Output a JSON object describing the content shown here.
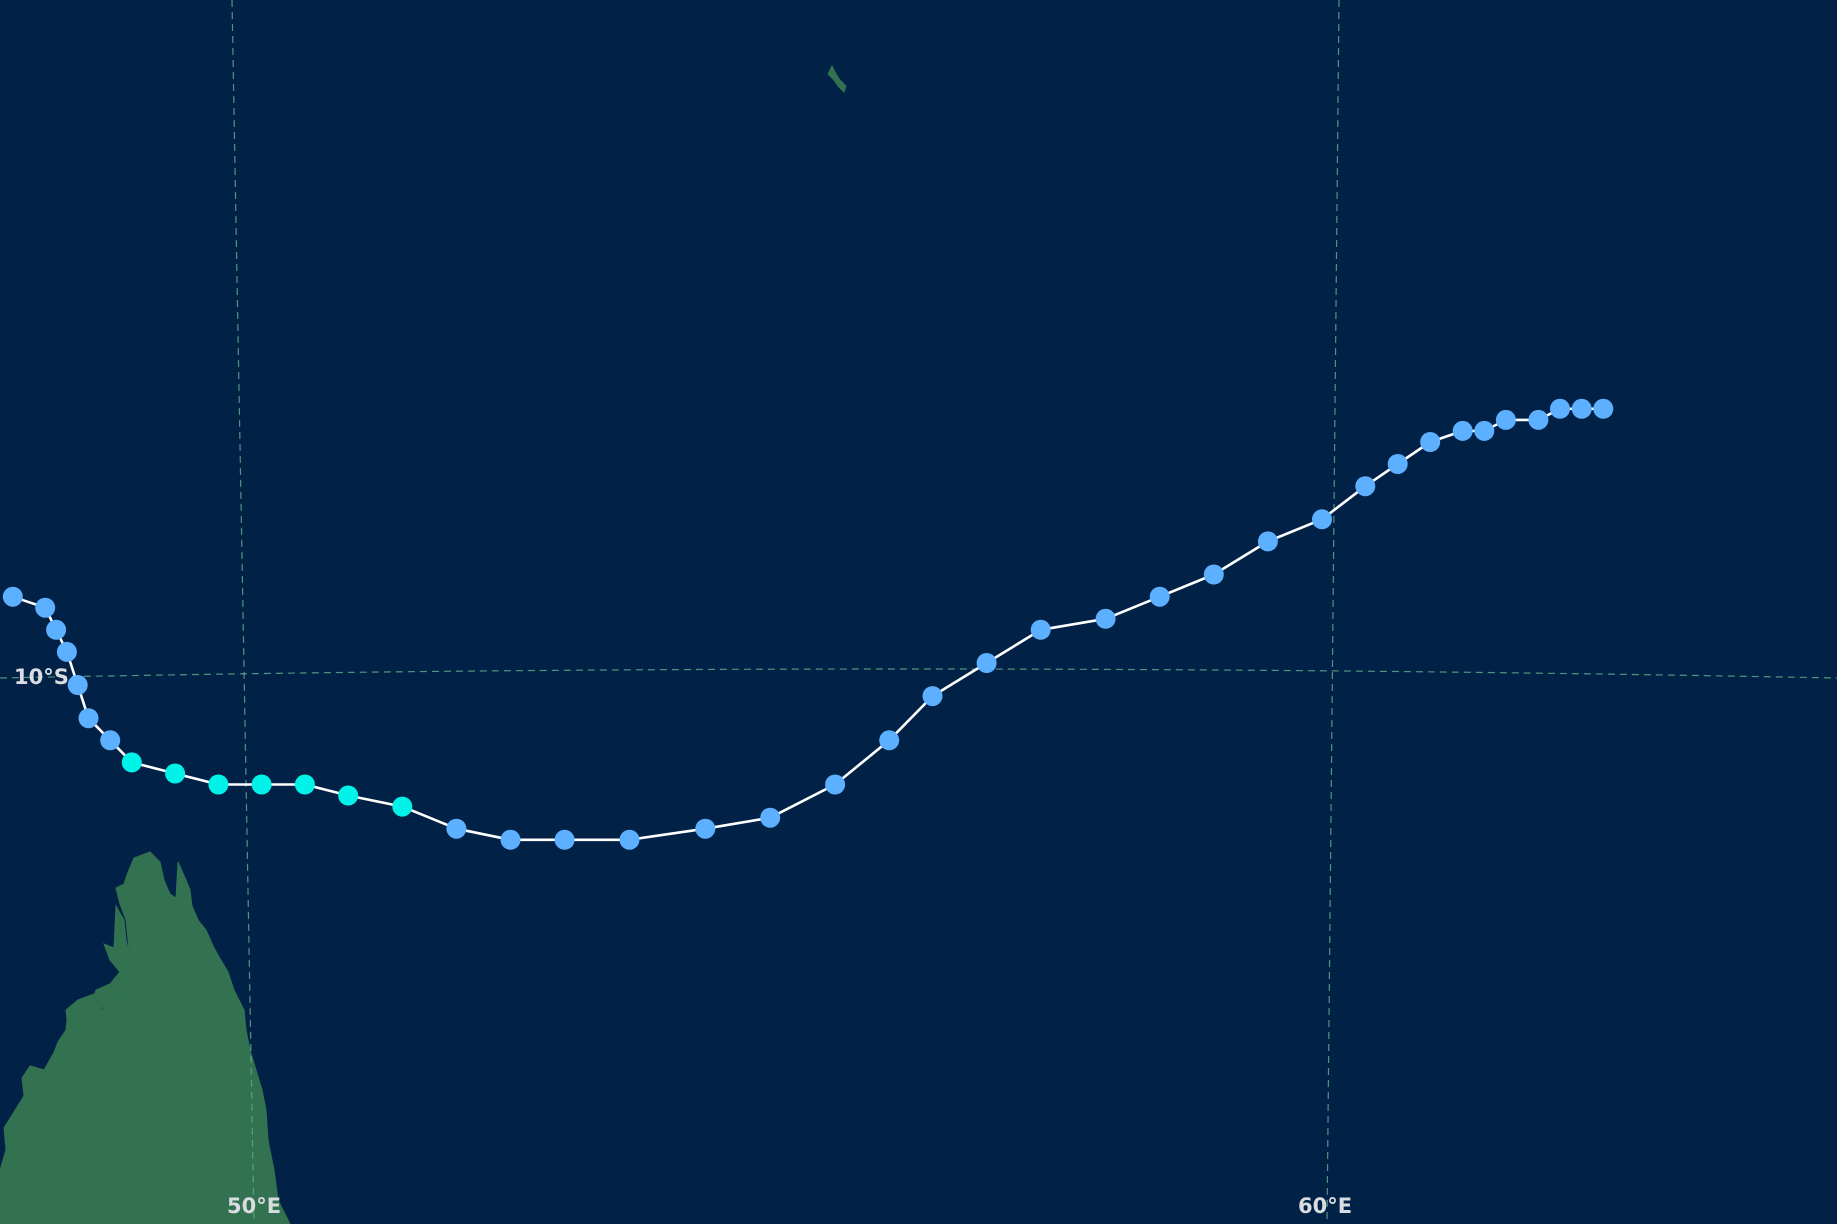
{
  "map": {
    "colors": {
      "ocean": "#012246",
      "land": "#327250",
      "gridline": "#5fa88a",
      "track": "#ffffff",
      "point_light_blue": "#5db0ff",
      "point_cyan": "#00f2e8",
      "label": "#d9dde2"
    },
    "labels": {
      "lat_10s": "10°S",
      "lon_50e": "50°E",
      "lon_60e": "60°E"
    },
    "track_points": [
      {
        "lon": 47.9,
        "lat": -9.3,
        "category": "light-blue"
      },
      {
        "lon": 48.2,
        "lat": -9.4,
        "category": "light-blue"
      },
      {
        "lon": 48.3,
        "lat": -9.6,
        "category": "light-blue"
      },
      {
        "lon": 48.4,
        "lat": -9.8,
        "category": "light-blue"
      },
      {
        "lon": 48.5,
        "lat": -10.1,
        "category": "light-blue"
      },
      {
        "lon": 48.6,
        "lat": -10.4,
        "category": "light-blue"
      },
      {
        "lon": 48.8,
        "lat": -10.6,
        "category": "light-blue"
      },
      {
        "lon": 49.0,
        "lat": -10.8,
        "category": "cyan"
      },
      {
        "lon": 49.4,
        "lat": -10.9,
        "category": "cyan"
      },
      {
        "lon": 49.8,
        "lat": -11.0,
        "category": "cyan"
      },
      {
        "lon": 50.2,
        "lat": -11.0,
        "category": "cyan"
      },
      {
        "lon": 50.6,
        "lat": -11.0,
        "category": "cyan"
      },
      {
        "lon": 51.0,
        "lat": -11.1,
        "category": "cyan"
      },
      {
        "lon": 51.5,
        "lat": -11.2,
        "category": "cyan"
      },
      {
        "lon": 52.0,
        "lat": -11.4,
        "category": "light-blue"
      },
      {
        "lon": 52.5,
        "lat": -11.5,
        "category": "light-blue"
      },
      {
        "lon": 53.0,
        "lat": -11.5,
        "category": "light-blue"
      },
      {
        "lon": 53.6,
        "lat": -11.5,
        "category": "light-blue"
      },
      {
        "lon": 54.3,
        "lat": -11.4,
        "category": "light-blue"
      },
      {
        "lon": 54.9,
        "lat": -11.3,
        "category": "light-blue"
      },
      {
        "lon": 55.5,
        "lat": -11.0,
        "category": "light-blue"
      },
      {
        "lon": 56.0,
        "lat": -10.6,
        "category": "light-blue"
      },
      {
        "lon": 56.4,
        "lat": -10.2,
        "category": "light-blue"
      },
      {
        "lon": 56.9,
        "lat": -9.9,
        "category": "light-blue"
      },
      {
        "lon": 57.4,
        "lat": -9.6,
        "category": "light-blue"
      },
      {
        "lon": 58.0,
        "lat": -9.5,
        "category": "light-blue"
      },
      {
        "lon": 58.5,
        "lat": -9.3,
        "category": "light-blue"
      },
      {
        "lon": 59.0,
        "lat": -9.1,
        "category": "light-blue"
      },
      {
        "lon": 59.5,
        "lat": -8.8,
        "category": "light-blue"
      },
      {
        "lon": 60.0,
        "lat": -8.6,
        "category": "light-blue"
      },
      {
        "lon": 60.4,
        "lat": -8.3,
        "category": "light-blue"
      },
      {
        "lon": 60.7,
        "lat": -8.1,
        "category": "light-blue"
      },
      {
        "lon": 61.0,
        "lat": -7.9,
        "category": "light-blue"
      },
      {
        "lon": 61.3,
        "lat": -7.8,
        "category": "light-blue"
      },
      {
        "lon": 61.5,
        "lat": -7.8,
        "category": "light-blue"
      },
      {
        "lon": 61.7,
        "lat": -7.7,
        "category": "light-blue"
      },
      {
        "lon": 62.0,
        "lat": -7.7,
        "category": "light-blue"
      },
      {
        "lon": 62.2,
        "lat": -7.6,
        "category": "light-blue"
      },
      {
        "lon": 62.4,
        "lat": -7.6,
        "category": "light-blue"
      },
      {
        "lon": 62.6,
        "lat": -7.6,
        "category": "light-blue"
      }
    ]
  }
}
